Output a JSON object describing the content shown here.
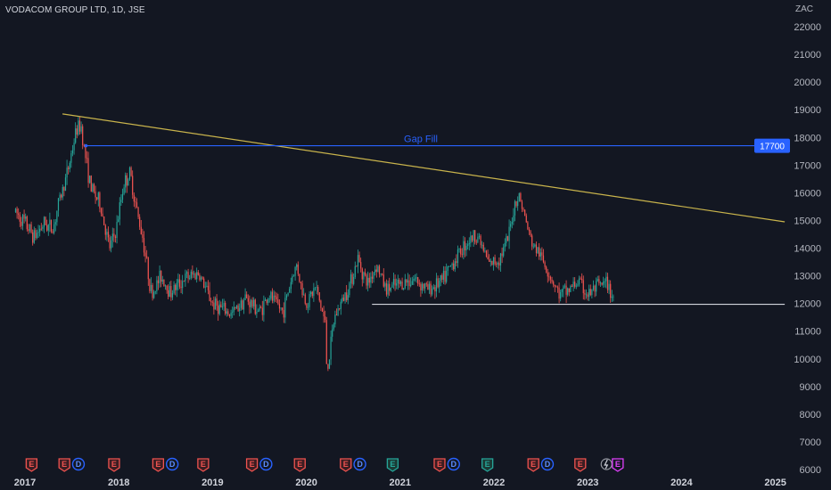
{
  "header": {
    "title": "VODACOM GROUP LTD, 1D, JSE"
  },
  "chart_data": {
    "type": "candlestick",
    "title": "VODACOM GROUP LTD, 1D, JSE",
    "unit": "ZAC",
    "ylim": [
      6000,
      22500
    ],
    "y_ticks": [
      22000,
      21000,
      20000,
      19000,
      18000,
      17000,
      16000,
      15000,
      14000,
      13000,
      12000,
      11000,
      10000,
      9000,
      8000,
      7000,
      6000
    ],
    "x_range": [
      2016.9,
      2025.15
    ],
    "x_ticks": [
      "2017",
      "2018",
      "2019",
      "2020",
      "2021",
      "2022",
      "2023",
      "2024",
      "2025"
    ],
    "price_path": [
      [
        2016.9,
        15300
      ],
      [
        2017.0,
        14900
      ],
      [
        2017.1,
        14400
      ],
      [
        2017.2,
        14900
      ],
      [
        2017.3,
        14700
      ],
      [
        2017.35,
        15500
      ],
      [
        2017.45,
        16700
      ],
      [
        2017.5,
        17500
      ],
      [
        2017.55,
        18300
      ],
      [
        2017.6,
        18400
      ],
      [
        2017.63,
        17600
      ],
      [
        2017.7,
        16200
      ],
      [
        2017.8,
        15600
      ],
      [
        2017.9,
        14000
      ],
      [
        2017.97,
        14600
      ],
      [
        2018.05,
        16300
      ],
      [
        2018.12,
        16700
      ],
      [
        2018.2,
        15200
      ],
      [
        2018.25,
        14500
      ],
      [
        2018.3,
        13400
      ],
      [
        2018.35,
        12300
      ],
      [
        2018.45,
        13000
      ],
      [
        2018.55,
        12400
      ],
      [
        2018.7,
        12900
      ],
      [
        2018.85,
        13100
      ],
      [
        2019.0,
        12000
      ],
      [
        2019.2,
        11600
      ],
      [
        2019.35,
        12200
      ],
      [
        2019.5,
        11700
      ],
      [
        2019.6,
        12300
      ],
      [
        2019.75,
        11700
      ],
      [
        2019.85,
        13000
      ],
      [
        2019.9,
        13400
      ],
      [
        2019.95,
        12500
      ],
      [
        2020.0,
        12000
      ],
      [
        2020.1,
        12600
      ],
      [
        2020.2,
        11300
      ],
      [
        2020.22,
        9500
      ],
      [
        2020.3,
        11500
      ],
      [
        2020.45,
        12600
      ],
      [
        2020.55,
        13600
      ],
      [
        2020.65,
        12700
      ],
      [
        2020.75,
        13400
      ],
      [
        2020.85,
        12500
      ],
      [
        2021.0,
        12700
      ],
      [
        2021.15,
        12900
      ],
      [
        2021.3,
        12500
      ],
      [
        2021.45,
        12800
      ],
      [
        2021.55,
        13400
      ],
      [
        2021.7,
        14200
      ],
      [
        2021.82,
        14500
      ],
      [
        2021.95,
        13400
      ],
      [
        2022.05,
        13600
      ],
      [
        2022.15,
        14300
      ],
      [
        2022.22,
        15600
      ],
      [
        2022.27,
        15900
      ],
      [
        2022.3,
        15500
      ],
      [
        2022.4,
        14200
      ],
      [
        2022.5,
        13700
      ],
      [
        2022.6,
        13000
      ],
      [
        2022.7,
        12300
      ],
      [
        2022.8,
        12500
      ],
      [
        2022.9,
        12800
      ],
      [
        2023.0,
        12300
      ],
      [
        2023.1,
        12600
      ],
      [
        2023.2,
        12700
      ],
      [
        2023.28,
        12200
      ]
    ],
    "trendline": {
      "from": [
        2017.4,
        18850
      ],
      "to": [
        2025.1,
        14950
      ],
      "color": "#c9b44c"
    },
    "support_line": {
      "from": [
        2020.7,
        11970
      ],
      "to": [
        2025.1,
        11970
      ],
      "color": "#d1d4dc"
    },
    "gap_fill": {
      "label": "Gap Fill",
      "price": 17700,
      "price_label": "17700",
      "from_x": 2017.65,
      "color": "#2962ff"
    },
    "events": [
      {
        "x": 2017.07,
        "kind": "earnings",
        "label": "E"
      },
      {
        "x": 2017.42,
        "kind": "earnings",
        "label": "E"
      },
      {
        "x": 2017.57,
        "kind": "dividend",
        "label": "D"
      },
      {
        "x": 2017.95,
        "kind": "earnings",
        "label": "E"
      },
      {
        "x": 2018.42,
        "kind": "earnings",
        "label": "E"
      },
      {
        "x": 2018.57,
        "kind": "dividend",
        "label": "D"
      },
      {
        "x": 2018.9,
        "kind": "earnings",
        "label": "E"
      },
      {
        "x": 2019.42,
        "kind": "earnings",
        "label": "E"
      },
      {
        "x": 2019.57,
        "kind": "dividend",
        "label": "D"
      },
      {
        "x": 2019.93,
        "kind": "earnings",
        "label": "E"
      },
      {
        "x": 2020.42,
        "kind": "earnings",
        "label": "E"
      },
      {
        "x": 2020.57,
        "kind": "dividend",
        "label": "D"
      },
      {
        "x": 2020.92,
        "kind": "earnings-green",
        "label": "E"
      },
      {
        "x": 2021.42,
        "kind": "earnings",
        "label": "E"
      },
      {
        "x": 2021.57,
        "kind": "dividend",
        "label": "D"
      },
      {
        "x": 2021.93,
        "kind": "earnings-green",
        "label": "E"
      },
      {
        "x": 2022.42,
        "kind": "earnings",
        "label": "E"
      },
      {
        "x": 2022.57,
        "kind": "dividend",
        "label": "D"
      },
      {
        "x": 2022.92,
        "kind": "earnings",
        "label": "E"
      },
      {
        "x": 2023.2,
        "kind": "split",
        "label": ""
      },
      {
        "x": 2023.32,
        "kind": "earnings-future",
        "label": "E"
      }
    ],
    "colors": {
      "up": "#26a69a",
      "down": "#ef5350",
      "background": "#131722",
      "axis_text": "#b2b5be"
    }
  }
}
